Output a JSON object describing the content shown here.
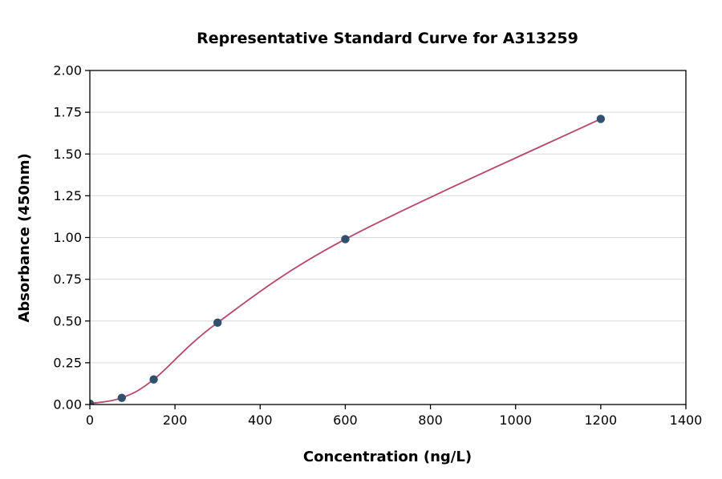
{
  "chart_data": {
    "type": "scatter",
    "title": "Representative Standard Curve for A313259",
    "xlabel": "Concentration (ng/L)",
    "ylabel": "Absorbance (450nm)",
    "xlim": [
      0,
      1400
    ],
    "ylim": [
      0,
      2.0
    ],
    "x_tick_values": [
      0,
      200,
      400,
      600,
      800,
      1000,
      1200,
      1400
    ],
    "x_tick_labels": [
      "0",
      "200",
      "400",
      "600",
      "800",
      "1000",
      "1200",
      "1400"
    ],
    "y_tick_values": [
      0,
      0.25,
      0.5,
      0.75,
      1.0,
      1.25,
      1.5,
      1.75,
      2.0
    ],
    "y_tick_labels": [
      "0.00",
      "0.25",
      "0.50",
      "0.75",
      "1.00",
      "1.25",
      "1.50",
      "1.75",
      "2.00"
    ],
    "grid": "horizontal",
    "legend": "none",
    "has_fit_curve": true,
    "points": [
      {
        "x": 0,
        "y": 0.005
      },
      {
        "x": 75,
        "y": 0.04
      },
      {
        "x": 150,
        "y": 0.15
      },
      {
        "x": 300,
        "y": 0.49
      },
      {
        "x": 600,
        "y": 0.99
      },
      {
        "x": 1200,
        "y": 1.71
      }
    ],
    "colors": {
      "curve": "#b5476b",
      "points": "#31506e",
      "grid": "#d9d9d9",
      "axis": "#000000",
      "background": "#ffffff"
    }
  }
}
